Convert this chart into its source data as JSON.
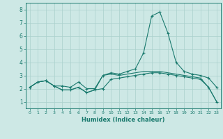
{
  "xlabel": "Humidex (Indice chaleur)",
  "bg_color": "#cde8e5",
  "grid_color": "#aad0cc",
  "line_color": "#1a7a6e",
  "x_values": [
    0,
    1,
    2,
    3,
    4,
    5,
    6,
    7,
    8,
    9,
    10,
    11,
    12,
    13,
    14,
    15,
    16,
    17,
    18,
    19,
    20,
    21,
    22,
    23
  ],
  "curve1": [
    2.1,
    2.5,
    2.6,
    2.2,
    2.2,
    2.1,
    2.5,
    2.0,
    2.0,
    3.0,
    3.2,
    3.1,
    3.3,
    3.5,
    4.7,
    7.5,
    7.8,
    6.2,
    4.0,
    3.3,
    3.1,
    3.0,
    2.8,
    2.1
  ],
  "curve2": [
    2.1,
    2.5,
    2.6,
    2.2,
    1.9,
    1.9,
    2.1,
    1.7,
    1.9,
    2.0,
    2.7,
    2.8,
    2.9,
    3.0,
    3.1,
    3.2,
    3.2,
    3.1,
    3.0,
    2.9,
    2.8,
    2.7,
    2.1,
    1.0
  ],
  "curve3": [
    2.1,
    2.5,
    2.6,
    2.2,
    1.9,
    1.9,
    2.1,
    1.7,
    1.9,
    3.0,
    3.1,
    3.0,
    3.1,
    3.2,
    3.3,
    3.3,
    3.3,
    3.2,
    3.1,
    3.0,
    2.9,
    2.8,
    2.1,
    1.0
  ],
  "ylim": [
    0.5,
    8.5
  ],
  "xlim": [
    -0.5,
    23.5
  ],
  "yticks": [
    1,
    2,
    3,
    4,
    5,
    6,
    7,
    8
  ],
  "xticks": [
    0,
    1,
    2,
    3,
    4,
    5,
    6,
    7,
    8,
    9,
    10,
    11,
    12,
    13,
    14,
    15,
    16,
    17,
    18,
    19,
    20,
    21,
    22,
    23
  ],
  "figsize": [
    3.2,
    2.0
  ],
  "dpi": 100
}
